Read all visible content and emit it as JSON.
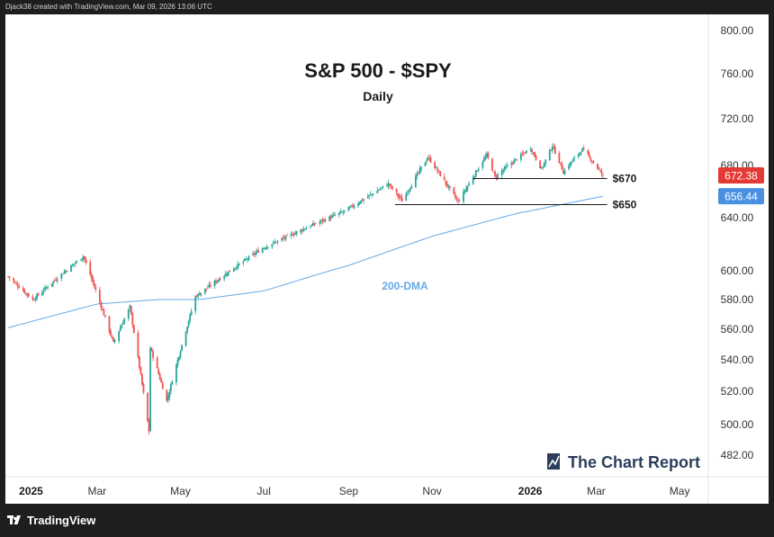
{
  "header": {
    "credit": "Djack38 created with TradingView.com, Mar 09, 2026 13:06 UTC"
  },
  "footer": {
    "brand": "TradingView"
  },
  "watermark": {
    "text": "The Chart Report"
  },
  "colors": {
    "up": "#26a69a",
    "down": "#ef5350",
    "ma": "#64a8e8",
    "price_tag": "#e53935",
    "ma_tag": "#4a90e2"
  },
  "chart_data": {
    "type": "candlestick",
    "title": "S&P 500 - $SPY",
    "subtitle": "Daily",
    "y_ticks": [
      800,
      760,
      720,
      680,
      640,
      600,
      580,
      560,
      540,
      520,
      500,
      482
    ],
    "y_tick_labels": [
      "800.00",
      "760.00",
      "720.00",
      "680.00",
      "640.00",
      "600.00",
      "580.00",
      "560.00",
      "540.00",
      "520.00",
      "500.00",
      "482.00"
    ],
    "x_labels": [
      {
        "label": "2025",
        "date": "2025-01-01",
        "bold": true
      },
      {
        "label": "Mar",
        "date": "2025-03-01",
        "bold": false
      },
      {
        "label": "May",
        "date": "2025-05-01",
        "bold": false
      },
      {
        "label": "Jul",
        "date": "2025-07-01",
        "bold": false
      },
      {
        "label": "Sep",
        "date": "2025-09-01",
        "bold": false
      },
      {
        "label": "Nov",
        "date": "2025-11-01",
        "bold": false
      },
      {
        "label": "2026",
        "date": "2026-01-01",
        "bold": true
      },
      {
        "label": "Mar",
        "date": "2026-03-01",
        "bold": false
      },
      {
        "label": "May",
        "date": "2026-05-01",
        "bold": false
      }
    ],
    "x_range": [
      "2024-12-24",
      "2026-05-20"
    ],
    "price_anchors": [
      [
        "2024-12-26",
        596
      ],
      [
        "2025-01-13",
        580
      ],
      [
        "2025-02-19",
        611
      ],
      [
        "2025-03-13",
        551
      ],
      [
        "2025-03-25",
        575
      ],
      [
        "2025-04-08",
        496
      ],
      [
        "2025-04-09",
        548
      ],
      [
        "2025-04-21",
        514
      ],
      [
        "2025-05-12",
        582
      ],
      [
        "2025-06-30",
        617
      ],
      [
        "2025-07-31",
        632
      ],
      [
        "2025-08-29",
        645
      ],
      [
        "2025-09-30",
        666
      ],
      [
        "2025-10-10",
        653
      ],
      [
        "2025-10-29",
        687
      ],
      [
        "2025-11-20",
        652
      ],
      [
        "2025-12-11",
        689
      ],
      [
        "2025-12-17",
        671
      ],
      [
        "2026-01-12",
        695
      ],
      [
        "2026-01-20",
        677
      ],
      [
        "2026-01-28",
        697
      ],
      [
        "2026-02-05",
        675
      ],
      [
        "2026-02-19",
        694
      ],
      [
        "2026-03-06",
        672.38
      ]
    ],
    "ma_anchors": [
      [
        "2024-12-26",
        561
      ],
      [
        "2025-03-01",
        577
      ],
      [
        "2025-04-15",
        580
      ],
      [
        "2025-05-15",
        580
      ],
      [
        "2025-07-01",
        586
      ],
      [
        "2025-09-01",
        604
      ],
      [
        "2025-11-01",
        626
      ],
      [
        "2026-01-01",
        643
      ],
      [
        "2026-03-06",
        656.44
      ]
    ],
    "levels": [
      {
        "label": "$670",
        "value": 670,
        "start": "2025-12-01",
        "end": "2026-03-09"
      },
      {
        "label": "$650",
        "value": 650,
        "start": "2025-10-05",
        "end": "2026-03-09"
      }
    ],
    "ma_label": "200-DMA",
    "last_price": {
      "value": 672.38,
      "label": "672.38"
    },
    "ma_value": {
      "value": 656.44,
      "label": "656.44"
    }
  }
}
